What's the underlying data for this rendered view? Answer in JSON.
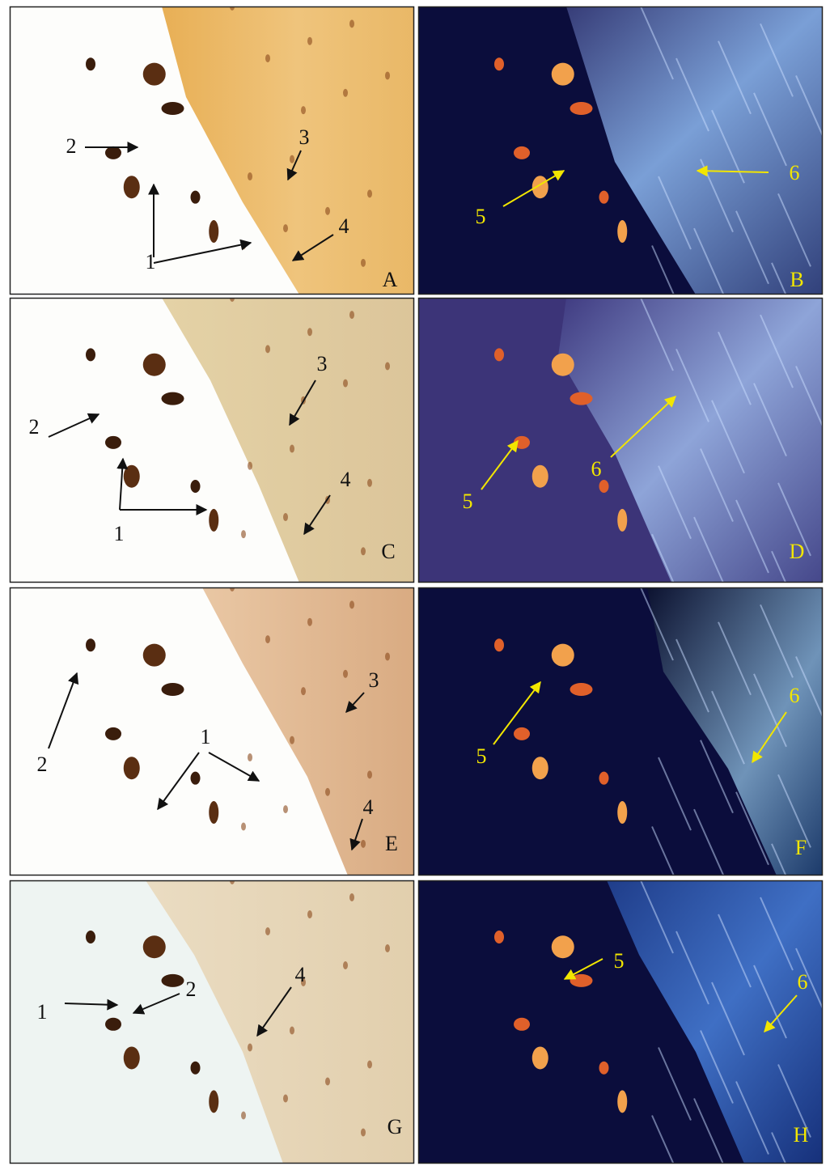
{
  "panels": [
    {
      "label": "A",
      "annotations": [
        "2",
        "3",
        "4",
        "1"
      ]
    },
    {
      "label": "B",
      "annotations": [
        "5",
        "6"
      ]
    },
    {
      "label": "C",
      "annotations": [
        "3",
        "2",
        "4",
        "1"
      ]
    },
    {
      "label": "D",
      "annotations": [
        "5",
        "6"
      ]
    },
    {
      "label": "E",
      "annotations": [
        "2",
        "1",
        "3",
        "4"
      ]
    },
    {
      "label": "F",
      "annotations": [
        "5",
        "6"
      ]
    },
    {
      "label": "G",
      "annotations": [
        "1",
        "2",
        "4"
      ]
    },
    {
      "label": "H",
      "annotations": [
        "5",
        "6"
      ]
    }
  ]
}
